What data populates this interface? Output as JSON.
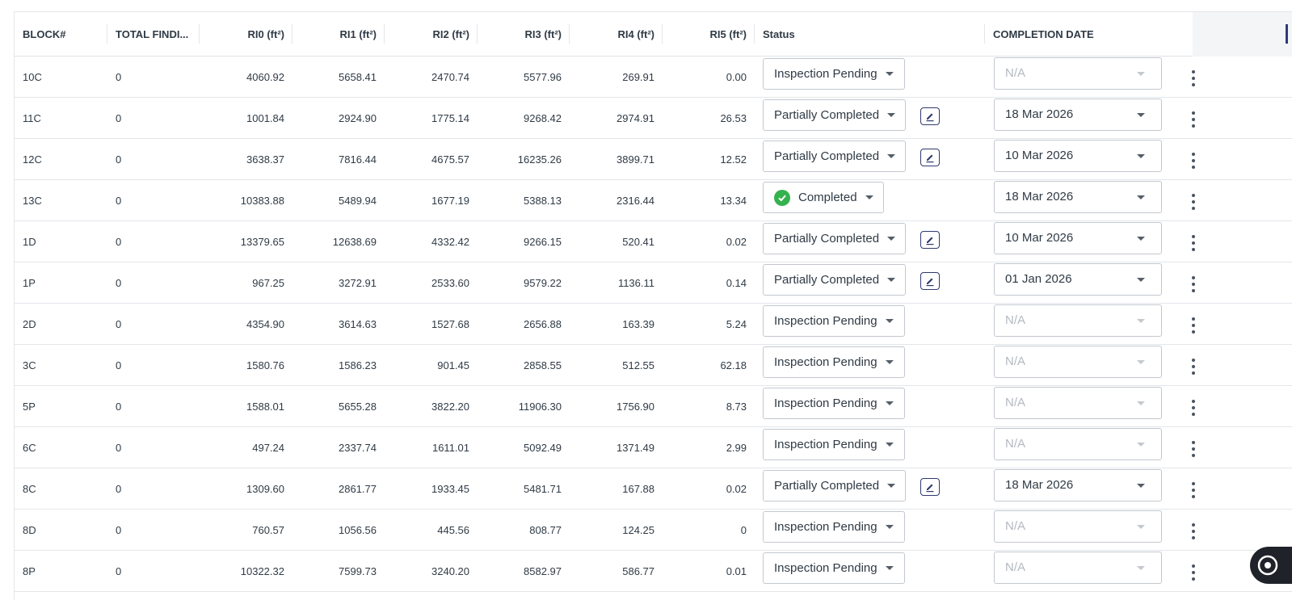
{
  "table": {
    "columns": {
      "block": "BLOCK#",
      "total_findings": "TOTAL FINDI...",
      "ri0": "RI0 (ft²)",
      "ri1": "RI1 (ft²)",
      "ri2": "RI2 (ft²)",
      "ri3": "RI3 (ft²)",
      "ri4": "RI4 (ft²)",
      "ri5": "RI5 (ft²)",
      "status": "Status",
      "completion_date": "COMPLETION DATE"
    },
    "rows": [
      {
        "block": "10C",
        "total": "0",
        "ri0": "4060.92",
        "ri1": "5658.41",
        "ri2": "2470.74",
        "ri3": "5577.96",
        "ri4": "269.91",
        "ri5": "0.00",
        "status": "Inspection Pending",
        "date": "N/A"
      },
      {
        "block": "11C",
        "total": "0",
        "ri0": "1001.84",
        "ri1": "2924.90",
        "ri2": "1775.14",
        "ri3": "9268.42",
        "ri4": "2974.91",
        "ri5": "26.53",
        "status": "Partially Completed",
        "date": "18 Mar 2026"
      },
      {
        "block": "12C",
        "total": "0",
        "ri0": "3638.37",
        "ri1": "7816.44",
        "ri2": "4675.57",
        "ri3": "16235.26",
        "ri4": "3899.71",
        "ri5": "12.52",
        "status": "Partially Completed",
        "date": "10 Mar 2026"
      },
      {
        "block": "13C",
        "total": "0",
        "ri0": "10383.88",
        "ri1": "5489.94",
        "ri2": "1677.19",
        "ri3": "5388.13",
        "ri4": "2316.44",
        "ri5": "13.34",
        "status": "Completed",
        "date": "18 Mar 2026"
      },
      {
        "block": "1D",
        "total": "0",
        "ri0": "13379.65",
        "ri1": "12638.69",
        "ri2": "4332.42",
        "ri3": "9266.15",
        "ri4": "520.41",
        "ri5": "0.02",
        "status": "Partially Completed",
        "date": "10 Mar 2026"
      },
      {
        "block": "1P",
        "total": "0",
        "ri0": "967.25",
        "ri1": "3272.91",
        "ri2": "2533.60",
        "ri3": "9579.22",
        "ri4": "1136.11",
        "ri5": "0.14",
        "status": "Partially Completed",
        "date": "01 Jan 2026"
      },
      {
        "block": "2D",
        "total": "0",
        "ri0": "4354.90",
        "ri1": "3614.63",
        "ri2": "1527.68",
        "ri3": "2656.88",
        "ri4": "163.39",
        "ri5": "5.24",
        "status": "Inspection Pending",
        "date": "N/A"
      },
      {
        "block": "3C",
        "total": "0",
        "ri0": "1580.76",
        "ri1": "1586.23",
        "ri2": "901.45",
        "ri3": "2858.55",
        "ri4": "512.55",
        "ri5": "62.18",
        "status": "Inspection Pending",
        "date": "N/A"
      },
      {
        "block": "5P",
        "total": "0",
        "ri0": "1588.01",
        "ri1": "5655.28",
        "ri2": "3822.20",
        "ri3": "11906.30",
        "ri4": "1756.90",
        "ri5": "8.73",
        "status": "Inspection Pending",
        "date": "N/A"
      },
      {
        "block": "6C",
        "total": "0",
        "ri0": "497.24",
        "ri1": "2337.74",
        "ri2": "1611.01",
        "ri3": "5092.49",
        "ri4": "1371.49",
        "ri5": "2.99",
        "status": "Inspection Pending",
        "date": "N/A"
      },
      {
        "block": "8C",
        "total": "0",
        "ri0": "1309.60",
        "ri1": "2861.77",
        "ri2": "1933.45",
        "ri3": "5481.71",
        "ri4": "167.88",
        "ri5": "0.02",
        "status": "Partially Completed",
        "date": "18 Mar 2026"
      },
      {
        "block": "8D",
        "total": "0",
        "ri0": "760.57",
        "ri1": "1056.56",
        "ri2": "445.56",
        "ri3": "808.77",
        "ri4": "124.25",
        "ri5": "0",
        "status": "Inspection Pending",
        "date": "N/A"
      },
      {
        "block": "8P",
        "total": "0",
        "ri0": "10322.32",
        "ri1": "7599.73",
        "ri2": "3240.20",
        "ri3": "8582.97",
        "ri4": "586.77",
        "ri5": "0.01",
        "status": "Inspection Pending",
        "date": "N/A"
      }
    ]
  },
  "icons": {
    "status_caret": "chevron-down-icon",
    "completed": "check-circle-icon",
    "edit": "edit-icon",
    "row_menu": "more-vertical-icon",
    "fab": "chat-icon"
  },
  "colors": {
    "completed_green": "#34b24e",
    "edit_border": "#2f3a6e",
    "placeholder_text": "#b3b9c1"
  }
}
